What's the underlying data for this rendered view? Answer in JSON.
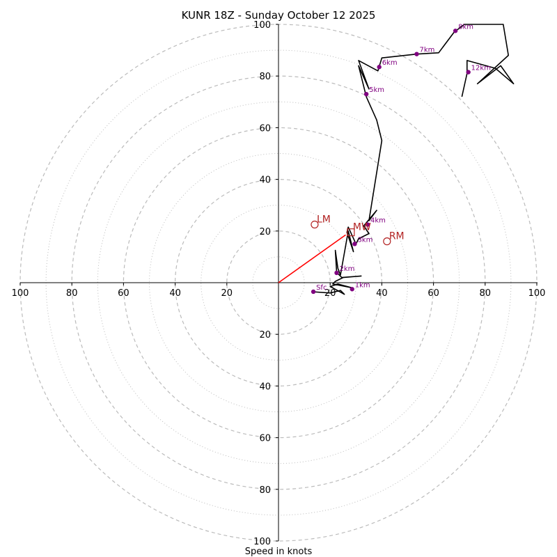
{
  "chart_data": {
    "type": "hodograph",
    "title": "KUNR 18Z - Sunday October 12 2025",
    "xlabel": "Speed in knots",
    "units": "knots",
    "max_speed": 100,
    "rings": {
      "major": [
        20,
        40,
        60,
        80,
        100
      ],
      "minor": [
        10,
        30,
        50,
        70,
        90
      ]
    },
    "tick_labels": {
      "x_left": [
        "100",
        "80",
        "60",
        "40",
        "20"
      ],
      "x_right": [
        "20",
        "40",
        "60",
        "80",
        "100"
      ],
      "y_up": [
        "20",
        "40",
        "60",
        "80",
        "100"
      ],
      "y_down": [
        "20",
        "40",
        "60",
        "80",
        "100"
      ]
    },
    "tick_values": [
      20,
      40,
      60,
      80,
      100
    ],
    "wind_trace": {
      "color": "#000000",
      "points": [
        [
          13,
          -3.5
        ],
        [
          20,
          -4
        ],
        [
          24,
          -3
        ],
        [
          25.5,
          -4.5
        ],
        [
          21,
          -2
        ],
        [
          20,
          -1.5
        ],
        [
          23,
          -0.5
        ],
        [
          28.5,
          -2
        ],
        [
          21,
          -0.5
        ],
        [
          22,
          0.5
        ],
        [
          25,
          2
        ],
        [
          32,
          2.6
        ],
        [
          24.5,
          2
        ],
        [
          22.5,
          4
        ],
        [
          22,
          12.5
        ],
        [
          23,
          5.5
        ],
        [
          24,
          3
        ],
        [
          27,
          20
        ],
        [
          29,
          12
        ],
        [
          26.5,
          19.5
        ],
        [
          27,
          21.5
        ],
        [
          30,
          15
        ],
        [
          31,
          17
        ],
        [
          35,
          19
        ],
        [
          33,
          22
        ],
        [
          38,
          28
        ],
        [
          35,
          24
        ],
        [
          40,
          55
        ],
        [
          38,
          63
        ],
        [
          34,
          72
        ],
        [
          31,
          84
        ],
        [
          35,
          75
        ],
        [
          31,
          86
        ],
        [
          38.5,
          82
        ],
        [
          40,
          87
        ],
        [
          53.5,
          88.5
        ],
        [
          62,
          89
        ],
        [
          68,
          97
        ],
        [
          72,
          100
        ],
        [
          87,
          100
        ],
        [
          89,
          88
        ],
        [
          77,
          77
        ],
        [
          86,
          84
        ],
        [
          91,
          77
        ],
        [
          84,
          83
        ],
        [
          73,
          86
        ],
        [
          73,
          81
        ],
        [
          71,
          72
        ]
      ]
    },
    "height_markers": [
      {
        "label": "Sfc",
        "u": 13.5,
        "v": -3.5
      },
      {
        "label": "1km",
        "u": 28.5,
        "v": -2.5
      },
      {
        "label": "2km",
        "u": 22.5,
        "v": 3.8
      },
      {
        "label": "3km",
        "u": 29.5,
        "v": 15
      },
      {
        "label": "4km",
        "u": 34.5,
        "v": 22.5
      },
      {
        "label": "5km",
        "u": 34,
        "v": 73
      },
      {
        "label": "6km",
        "u": 39,
        "v": 83.5
      },
      {
        "label": "7km",
        "u": 53.5,
        "v": 88.5
      },
      {
        "label": "8km",
        "u": 68.5,
        "v": 97.5
      },
      {
        "label": "12km",
        "u": 73.5,
        "v": 81.5
      }
    ],
    "marker_color": "#800080",
    "storm_motion": [
      {
        "label": "LM",
        "u": 14,
        "v": 22.5,
        "shape": "circle"
      },
      {
        "label": "MW",
        "u": 28,
        "v": 19.5,
        "shape": "square"
      },
      {
        "label": "RM",
        "u": 42,
        "v": 16,
        "shape": "circle"
      }
    ],
    "storm_motion_color": "#b22222",
    "shear_vector": {
      "from": [
        0,
        0
      ],
      "to": [
        26,
        18.5
      ],
      "color": "#ff0000"
    },
    "ring_color": "#bbbbbb"
  }
}
